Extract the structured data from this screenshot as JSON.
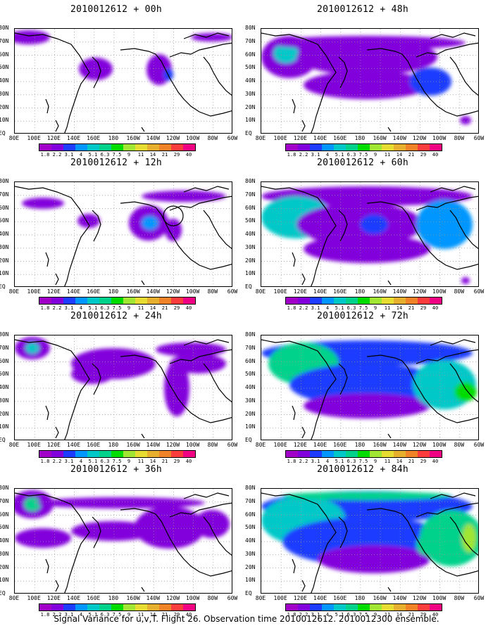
{
  "panels": [
    {
      "title": "2010012612 + 00h"
    },
    {
      "title": "2010012612 + 12h"
    },
    {
      "title": "2010012612 + 24h"
    },
    {
      "title": "2010012612 + 36h"
    },
    {
      "title": "2010012612 + 48h"
    },
    {
      "title": "2010012612 + 60h"
    },
    {
      "title": "2010012612 + 72h"
    },
    {
      "title": "2010012612 + 84h"
    }
  ],
  "lat_labels": [
    "80N",
    "70N",
    "60N",
    "50N",
    "40N",
    "30N",
    "20N",
    "10N",
    "EQ"
  ],
  "lon_labels": [
    "80E",
    "100E",
    "120E",
    "140E",
    "160E",
    "180",
    "160W",
    "140W",
    "120W",
    "100W",
    "80W",
    "60W"
  ],
  "colorbar": {
    "labels": [
      "1.8",
      "2.2",
      "3.1",
      "4",
      "5.1",
      "6.3",
      "7.5",
      "9",
      "11",
      "14",
      "21",
      "29",
      "40"
    ],
    "colors": [
      "#a000c8",
      "#8200dc",
      "#1e3cff",
      "#0096ff",
      "#00c8c8",
      "#00d28c",
      "#00dc00",
      "#a0e632",
      "#e6dc32",
      "#e6af2d",
      "#f08228",
      "#fa3c3c",
      "#f00082"
    ]
  },
  "caption": "Signal Variance for u,v,T. Flight 26. Observation time 2010012612. 2010012300 ensemble."
}
